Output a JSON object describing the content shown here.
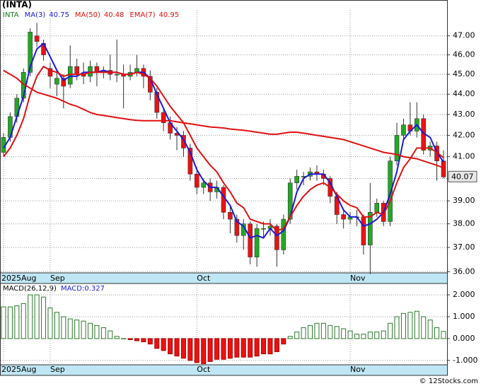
{
  "chart_data": [
    {
      "type": "candlestick",
      "title": "(INTA)",
      "symbol": "INTA",
      "log_scale": true,
      "grid": true,
      "up_color": "#22aa22",
      "down_color": "#ee1111",
      "categories": [
        "2025Aug",
        null,
        null,
        null,
        null,
        null,
        null,
        "Sep",
        null,
        null,
        null,
        null,
        null,
        null,
        null,
        null,
        null,
        null,
        null,
        null,
        null,
        null,
        null,
        null,
        null,
        null,
        null,
        null,
        null,
        "Oct",
        null,
        null,
        null,
        null,
        null,
        null,
        null,
        null,
        null,
        null,
        null,
        null,
        null,
        null,
        null,
        null,
        null,
        null,
        null,
        null,
        null,
        null,
        "Nov",
        null,
        null,
        null,
        null,
        null,
        null,
        null,
        null,
        null,
        null,
        null,
        null,
        null,
        null
      ],
      "open": [
        41.2,
        41.9,
        42.9,
        43.8,
        45.1,
        47.0,
        46.6,
        45.3,
        44.5,
        44.8,
        44.5,
        45.4,
        45.0,
        44.9,
        45.4,
        45.1,
        45.2,
        45.0,
        45.0,
        44.9,
        45.1,
        45.3,
        44.9,
        44.1,
        43.1,
        42.6,
        42.1,
        42.0,
        41.4,
        40.2,
        39.6,
        39.8,
        39.4,
        39.6,
        38.5,
        38.2,
        37.5,
        38.0,
        36.6,
        37.8,
        37.8,
        37.9,
        36.9,
        38.2,
        39.8,
        40.1,
        40.1,
        40.3,
        40.2,
        40.0,
        39.2,
        38.4,
        38.2,
        38.3,
        38.3,
        37.1,
        38.5,
        38.9,
        38.1,
        40.8,
        42.0,
        42.5,
        42.2,
        42.8,
        41.3,
        41.5,
        40.8
      ],
      "high": [
        42.1,
        43.1,
        44.0,
        45.3,
        47.4,
        47.7,
        46.8,
        45.6,
        45.2,
        45.0,
        46.5,
        45.8,
        45.6,
        45.7,
        45.6,
        45.4,
        46.0,
        46.8,
        45.5,
        45.5,
        46.0,
        45.5,
        45.2,
        44.3,
        43.3,
        42.9,
        42.4,
        42.2,
        41.6,
        40.5,
        40.0,
        40.0,
        39.9,
        39.7,
        38.8,
        38.4,
        38.2,
        38.1,
        38.0,
        38.1,
        38.2,
        38.0,
        38.4,
        40.0,
        40.4,
        40.3,
        40.5,
        40.6,
        40.4,
        40.1,
        39.4,
        38.6,
        38.5,
        38.6,
        38.4,
        39.8,
        39.1,
        39.0,
        41.0,
        42.6,
        42.8,
        43.6,
        43.6,
        43.0,
        41.7,
        41.7,
        41.3
      ],
      "low": [
        41.0,
        41.7,
        42.6,
        43.6,
        44.9,
        46.4,
        45.7,
        44.3,
        43.9,
        43.3,
        44.3,
        44.7,
        44.5,
        44.6,
        44.4,
        44.8,
        44.7,
        44.6,
        43.3,
        44.7,
        44.9,
        44.3,
        43.7,
        42.8,
        42.2,
        41.8,
        41.3,
        41.0,
        39.9,
        39.3,
        39.3,
        39.0,
        39.1,
        38.2,
        37.6,
        37.2,
        36.9,
        36.3,
        36.2,
        37.4,
        37.5,
        36.2,
        36.7,
        38.0,
        39.5,
        39.7,
        39.9,
        39.9,
        39.7,
        38.9,
        38.0,
        37.8,
        38.0,
        37.9,
        36.7,
        35.9,
        38.3,
        37.9,
        37.9,
        40.6,
        41.8,
        42.0,
        41.9,
        41.1,
        41.0,
        39.9,
        40.0
      ],
      "close": [
        41.9,
        42.9,
        43.8,
        45.1,
        47.2,
        46.7,
        46.0,
        44.9,
        44.8,
        44.4,
        45.4,
        45.0,
        44.9,
        45.4,
        45.1,
        45.2,
        45.0,
        45.0,
        44.9,
        45.1,
        45.3,
        44.9,
        44.1,
        43.1,
        42.6,
        42.1,
        42.0,
        41.4,
        40.2,
        39.6,
        39.8,
        39.4,
        39.6,
        38.5,
        38.2,
        37.5,
        38.0,
        36.6,
        37.8,
        37.8,
        37.9,
        36.9,
        38.2,
        39.8,
        40.1,
        40.1,
        40.3,
        40.2,
        40.0,
        39.2,
        38.4,
        38.2,
        38.3,
        38.3,
        37.1,
        38.5,
        38.9,
        38.1,
        40.8,
        42.0,
        42.5,
        42.2,
        42.8,
        41.3,
        41.5,
        40.8,
        40.07
      ],
      "series": [
        {
          "name": "MA(3)",
          "color": "#1a1ad6",
          "legend_value": 40.75,
          "values": [
            41.4,
            41.9,
            42.9,
            43.9,
            45.4,
            46.3,
            46.6,
            45.9,
            45.2,
            44.7,
            44.9,
            44.9,
            45.1,
            45.1,
            45.1,
            45.2,
            45.1,
            45.1,
            45.0,
            45.0,
            45.1,
            45.1,
            44.8,
            44.0,
            43.3,
            42.6,
            42.2,
            41.8,
            41.2,
            40.4,
            39.9,
            39.6,
            39.6,
            39.2,
            38.8,
            38.1,
            37.9,
            37.4,
            37.5,
            37.4,
            37.8,
            37.5,
            37.7,
            38.3,
            39.4,
            40.0,
            40.2,
            40.2,
            40.2,
            39.8,
            39.2,
            38.6,
            38.3,
            38.3,
            37.9,
            38.0,
            38.2,
            38.5,
            39.3,
            40.3,
            41.8,
            42.2,
            42.5,
            42.1,
            41.9,
            41.2,
            40.75
          ]
        },
        {
          "name": "MA(50)",
          "color": "#e01010",
          "legend_value": 40.48,
          "values": [
            45.2,
            45.0,
            44.8,
            44.5,
            44.3,
            44.1,
            44.0,
            43.9,
            43.8,
            43.65,
            43.5,
            43.4,
            43.25,
            43.1,
            43.0,
            42.95,
            42.9,
            42.85,
            42.8,
            42.75,
            42.72,
            42.7,
            42.7,
            42.7,
            42.7,
            42.7,
            42.65,
            42.6,
            42.55,
            42.5,
            42.45,
            42.4,
            42.38,
            42.35,
            42.3,
            42.27,
            42.24,
            42.2,
            42.15,
            42.1,
            42.05,
            42.05,
            42.1,
            42.15,
            42.15,
            42.1,
            42.05,
            42.0,
            41.95,
            41.9,
            41.85,
            41.8,
            41.7,
            41.6,
            41.5,
            41.4,
            41.3,
            41.2,
            41.15,
            41.1,
            41.0,
            40.95,
            40.9,
            40.8,
            40.7,
            40.6,
            40.48
          ]
        },
        {
          "name": "EMA(7)",
          "color": "#e01010",
          "legend_value": 40.95,
          "values": [
            41.0,
            41.4,
            42.0,
            42.8,
            44.0,
            44.9,
            45.4,
            45.2,
            45.1,
            44.9,
            45.0,
            45.0,
            45.0,
            45.1,
            45.1,
            45.1,
            45.1,
            45.1,
            45.0,
            45.0,
            45.1,
            45.0,
            44.8,
            44.4,
            43.9,
            43.4,
            43.0,
            42.6,
            42.0,
            41.4,
            41.0,
            40.6,
            40.3,
            39.8,
            39.4,
            38.9,
            38.7,
            38.2,
            38.1,
            38.0,
            38.0,
            37.7,
            37.8,
            38.3,
            38.8,
            39.2,
            39.5,
            39.7,
            39.8,
            39.6,
            39.3,
            39.0,
            38.8,
            38.7,
            38.3,
            38.3,
            38.5,
            38.4,
            39.0,
            39.8,
            40.5,
            40.9,
            41.4,
            41.4,
            41.4,
            41.2,
            40.95
          ]
        }
      ],
      "ylim": [
        35.95,
        48.4
      ],
      "yticks": [
        {
          "value": 36,
          "label": "36.00"
        },
        {
          "value": 37,
          "label": "37.00"
        },
        {
          "value": 38,
          "label": "38.00"
        },
        {
          "value": 39,
          "label": "39.00"
        },
        {
          "value": 40,
          "label": "40.00"
        },
        {
          "value": 41,
          "label": "41.00"
        },
        {
          "value": 42,
          "label": "42.00"
        },
        {
          "value": 43,
          "label": "43.00"
        },
        {
          "value": 44,
          "label": "44.00"
        },
        {
          "value": 45,
          "label": "45.00"
        },
        {
          "value": 46,
          "label": "46.00"
        },
        {
          "value": 47,
          "label": "47.00"
        }
      ]
    },
    {
      "type": "bar",
      "title": "MACD(26,12,9)",
      "value_label": "MACD:0.327",
      "grid": true,
      "up_color": "#2a7a2a",
      "down_color": "#ee1111",
      "values": [
        1.45,
        1.45,
        1.5,
        1.6,
        2.0,
        2.0,
        1.9,
        1.4,
        1.2,
        1.0,
        0.9,
        0.85,
        0.8,
        0.7,
        0.6,
        0.5,
        0.35,
        0.1,
        0.0,
        -0.05,
        -0.1,
        -0.15,
        -0.25,
        -0.45,
        -0.55,
        -0.7,
        -0.8,
        -0.9,
        -1.0,
        -1.1,
        -1.15,
        -1.05,
        -0.95,
        -0.95,
        -0.9,
        -0.85,
        -0.85,
        -0.85,
        -0.8,
        -0.7,
        -0.7,
        -0.6,
        -0.25,
        0.1,
        0.3,
        0.5,
        0.6,
        0.7,
        0.7,
        0.6,
        0.55,
        0.45,
        0.35,
        0.2,
        0.2,
        0.3,
        0.3,
        0.35,
        0.7,
        1.0,
        1.15,
        1.2,
        1.25,
        1.0,
        0.85,
        0.5,
        0.327
      ],
      "ylim": [
        -1.2,
        2.52
      ],
      "yticks": [
        {
          "value": -1,
          "label": "-1.000"
        },
        {
          "value": 0,
          "label": "0.000"
        },
        {
          "value": 1,
          "label": "1.000"
        },
        {
          "value": 2,
          "label": "2.000"
        }
      ]
    }
  ],
  "footer": "© 12Stocks.com"
}
